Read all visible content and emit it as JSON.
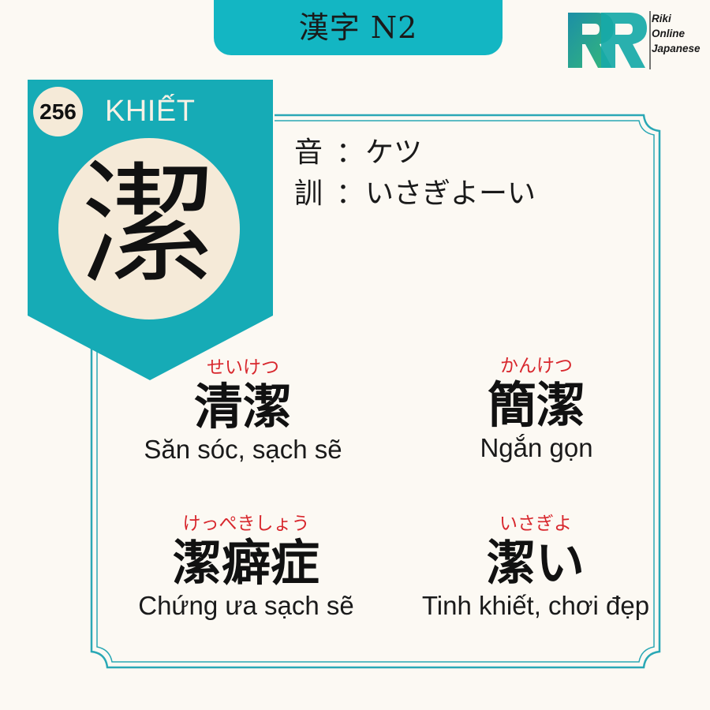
{
  "header": {
    "title": "漢字 N2"
  },
  "brand": {
    "logo_lines": [
      "Riki",
      "Online",
      "Japanese"
    ]
  },
  "kanji_card": {
    "number": "256",
    "sino_vietnamese": "KHIẾT",
    "kanji": "潔",
    "on_label": "音",
    "on_reading": "ケツ",
    "kun_label": "訓",
    "kun_reading": "いさぎよーい",
    "separator": "："
  },
  "vocabulary": [
    {
      "furigana": "せいけつ",
      "word": "清潔",
      "meaning": "Săn sóc, sạch sẽ"
    },
    {
      "furigana": "かんけつ",
      "word": "簡潔",
      "meaning": "Ngắn gọn"
    },
    {
      "furigana": "けっぺきしょう",
      "word": "潔癖症",
      "meaning": "Chứng ưa sạch sẽ"
    },
    {
      "furigana": "いさぎよ",
      "word": "潔い",
      "meaning": "Tinh khiết, chơi đẹp"
    }
  ],
  "colors": {
    "teal": "#13b6c3",
    "badge_teal": "#16abb6",
    "frame_teal": "#2aa8b5",
    "cream": "#f5ead8",
    "background": "#fcf9f3",
    "furigana_red": "#d8272d",
    "logo_teal": "#17a9a8",
    "logo_green": "#35b97a"
  }
}
